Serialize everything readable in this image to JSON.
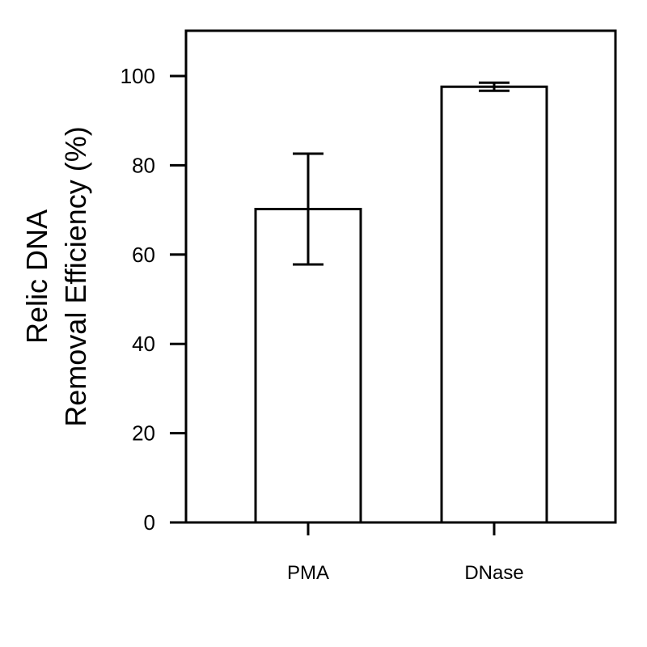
{
  "chart_data": {
    "type": "bar",
    "categories": [
      "PMA",
      "DNase"
    ],
    "values": [
      70.2,
      97.6
    ],
    "errors": [
      12.4,
      0.9
    ],
    "ylabel_lines": [
      "Relic DNA",
      "Removal Efficiency (%)"
    ],
    "xlabel": "",
    "ylim": [
      0,
      110
    ],
    "yticks": [
      0,
      20,
      40,
      60,
      80,
      100
    ],
    "ytick_labels": [
      "0",
      "20",
      "40",
      "60",
      "80",
      "100"
    ],
    "grid": false,
    "bar_fill": "#ffffff",
    "stroke_color": "#000000"
  }
}
